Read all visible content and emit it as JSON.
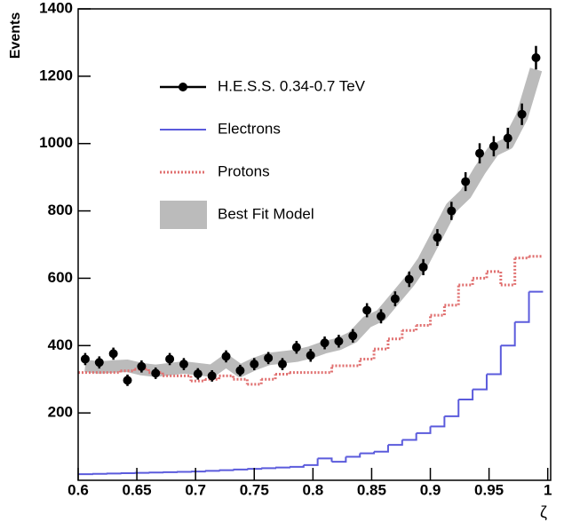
{
  "chart_data": {
    "type": "histogram",
    "xlabel": "ζ",
    "ylabel": "Events",
    "xlim": [
      0.6,
      1.0025
    ],
    "ylim": [
      0,
      1400
    ],
    "xticks": [
      0.6,
      0.65,
      0.7,
      0.75,
      0.8,
      0.85,
      0.9,
      0.95,
      1
    ],
    "yticks": [
      200,
      400,
      600,
      800,
      1000,
      1200,
      1400
    ],
    "x": [
      0.606,
      0.618,
      0.63,
      0.642,
      0.654,
      0.666,
      0.678,
      0.69,
      0.702,
      0.714,
      0.726,
      0.738,
      0.75,
      0.762,
      0.774,
      0.786,
      0.798,
      0.81,
      0.822,
      0.834,
      0.846,
      0.858,
      0.87,
      0.882,
      0.894,
      0.906,
      0.918,
      0.93,
      0.942,
      0.954,
      0.966,
      0.978,
      0.99
    ],
    "bins": [
      0.6,
      0.612,
      0.624,
      0.636,
      0.648,
      0.66,
      0.672,
      0.684,
      0.696,
      0.708,
      0.72,
      0.732,
      0.744,
      0.756,
      0.768,
      0.78,
      0.792,
      0.804,
      0.816,
      0.828,
      0.84,
      0.852,
      0.864,
      0.876,
      0.888,
      0.9,
      0.912,
      0.924,
      0.936,
      0.948,
      0.96,
      0.972,
      0.984,
      0.996
    ],
    "series": [
      {
        "name": "H.E.S.S. 0.34-0.7 TeV",
        "color": "#000000",
        "style": "points",
        "values": [
          360,
          350,
          376,
          297,
          338,
          318,
          360,
          345,
          316,
          310,
          368,
          326,
          345,
          363,
          345,
          395,
          371,
          408,
          413,
          429,
          505,
          487,
          539,
          597,
          633,
          721,
          800,
          887,
          971,
          992,
          1016,
          1087,
          1255
        ],
        "errors": [
          18,
          18,
          18,
          17,
          18,
          17,
          18,
          18,
          17,
          17,
          18,
          17,
          18,
          18,
          18,
          19,
          19,
          19,
          19,
          20,
          21,
          21,
          22,
          23,
          24,
          25,
          27,
          28,
          30,
          30,
          31,
          32,
          35
        ]
      },
      {
        "name": "Electrons",
        "color": "#5b5bdc",
        "style": "step",
        "values": [
          18,
          19,
          20,
          21,
          22,
          23,
          24,
          25,
          26,
          28,
          30,
          32,
          34,
          36,
          38,
          40,
          45,
          65,
          55,
          70,
          80,
          85,
          105,
          120,
          140,
          160,
          190,
          240,
          270,
          315,
          400,
          470,
          560
        ]
      },
      {
        "name": "Protons",
        "color": "#e07070",
        "style": "dotted-step",
        "values": [
          320,
          320,
          320,
          325,
          330,
          320,
          310,
          310,
          295,
          300,
          310,
          300,
          285,
          300,
          315,
          320,
          320,
          320,
          340,
          340,
          360,
          390,
          420,
          445,
          460,
          490,
          520,
          580,
          600,
          620,
          580,
          660,
          665
        ]
      },
      {
        "name": "Best Fit Model",
        "color": "#bbbbbb",
        "style": "band",
        "values": [
          340,
          335,
          338,
          340,
          330,
          325,
          330,
          335,
          330,
          325,
          355,
          325,
          345,
          360,
          365,
          370,
          380,
          395,
          405,
          425,
          470,
          490,
          540,
          590,
          650,
          730,
          810,
          850,
          920,
          980,
          1000,
          1080,
          1220
        ]
      }
    ]
  }
}
